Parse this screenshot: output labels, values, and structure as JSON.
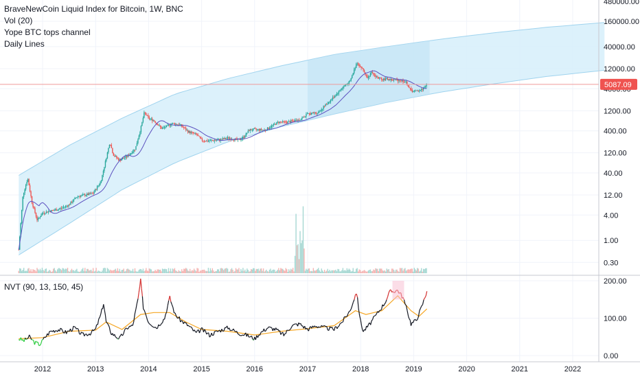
{
  "legend": {
    "title": "BraveNewCoin Liquid Index for Bitcoin, 1W, BNC",
    "vol": "Vol (20)",
    "channel": "Yope BTC tops channel",
    "daily": "Daily Lines",
    "nvt": "NVT (90, 13, 150, 45)"
  },
  "price_badge": {
    "label": "5087.09",
    "color": "#ef5350"
  },
  "colors": {
    "channel_fill": "#d6eefa",
    "channel_edge": "#9fd3ee",
    "highlight": "#bfe3f5",
    "up_candle": "#26a69a",
    "down_candle": "#ef5350",
    "ma": "#5b4fbf",
    "nvt_line": "#131722",
    "nvt_sma": "#f5a623",
    "nvt_high": "#d32f2f",
    "nvt_low": "#2ecc40",
    "price_line": "#ef9a9a"
  },
  "chart_data": [
    {
      "type": "candlestick",
      "scale": "log",
      "price_ticks": [
        "480000.00",
        "160000.00",
        "40000.00",
        "12000.00",
        "4000.00",
        "1200.00",
        "400.00",
        "120.00",
        "40.00",
        "12.00",
        "4.00",
        "1.00",
        "0.30"
      ],
      "price_tick_values": [
        480000,
        160000,
        40000,
        12000,
        4000,
        1200,
        400,
        120,
        40,
        12,
        4,
        1,
        0.3
      ],
      "x_ticks": [
        "2012",
        "2013",
        "2014",
        "2015",
        "2016",
        "2017",
        "2018",
        "2019",
        "2020",
        "2021",
        "2022"
      ],
      "x_tick_values": [
        2012,
        2013,
        2014,
        2015,
        2016,
        2017,
        2018,
        2019,
        2020,
        2021,
        2022
      ],
      "last_price": 5087.09,
      "price_path": [
        [
          2011.55,
          0.6
        ],
        [
          2011.63,
          12
        ],
        [
          2011.72,
          30
        ],
        [
          2011.8,
          8
        ],
        [
          2011.9,
          3
        ],
        [
          2012.0,
          4.5
        ],
        [
          2012.15,
          5
        ],
        [
          2012.3,
          5.5
        ],
        [
          2012.5,
          7
        ],
        [
          2012.65,
          11
        ],
        [
          2012.8,
          12
        ],
        [
          2012.95,
          13
        ],
        [
          2013.1,
          25
        ],
        [
          2013.2,
          90
        ],
        [
          2013.27,
          220
        ],
        [
          2013.33,
          110
        ],
        [
          2013.45,
          80
        ],
        [
          2013.6,
          100
        ],
        [
          2013.75,
          150
        ],
        [
          2013.85,
          450
        ],
        [
          2013.92,
          1100
        ],
        [
          2014.0,
          800
        ],
        [
          2014.1,
          700
        ],
        [
          2014.25,
          450
        ],
        [
          2014.45,
          600
        ],
        [
          2014.6,
          550
        ],
        [
          2014.75,
          380
        ],
        [
          2014.9,
          330
        ],
        [
          2015.0,
          240
        ],
        [
          2015.1,
          230
        ],
        [
          2015.3,
          240
        ],
        [
          2015.5,
          270
        ],
        [
          2015.7,
          240
        ],
        [
          2015.8,
          290
        ],
        [
          2015.9,
          420
        ],
        [
          2016.0,
          430
        ],
        [
          2016.2,
          420
        ],
        [
          2016.45,
          650
        ],
        [
          2016.6,
          640
        ],
        [
          2016.85,
          740
        ],
        [
          2017.0,
          1000
        ],
        [
          2017.2,
          1100
        ],
        [
          2017.35,
          1700
        ],
        [
          2017.5,
          2600
        ],
        [
          2017.65,
          4200
        ],
        [
          2017.8,
          6000
        ],
        [
          2017.93,
          17000
        ],
        [
          2018.05,
          11000
        ],
        [
          2018.12,
          7500
        ],
        [
          2018.2,
          9500
        ],
        [
          2018.35,
          7000
        ],
        [
          2018.5,
          6700
        ],
        [
          2018.6,
          6500
        ],
        [
          2018.75,
          6400
        ],
        [
          2018.85,
          5800
        ],
        [
          2018.95,
          3600
        ],
        [
          2019.05,
          3500
        ],
        [
          2019.15,
          3800
        ],
        [
          2019.25,
          5087
        ]
      ],
      "channel": {
        "upper": [
          [
            2011.55,
            35
          ],
          [
            2012.5,
            180
          ],
          [
            2013.5,
            800
          ],
          [
            2014.5,
            3000
          ],
          [
            2015.5,
            7000
          ],
          [
            2016.5,
            14000
          ],
          [
            2017.5,
            26000
          ],
          [
            2018.5,
            40000
          ],
          [
            2019.5,
            60000
          ],
          [
            2020.5,
            85000
          ],
          [
            2021.5,
            115000
          ],
          [
            2022.6,
            150000
          ]
        ],
        "lower": [
          [
            2011.55,
            0.45
          ],
          [
            2012.5,
            2.5
          ],
          [
            2013.5,
            16
          ],
          [
            2014.5,
            70
          ],
          [
            2015.5,
            220
          ],
          [
            2016.5,
            500
          ],
          [
            2017.5,
            1000
          ],
          [
            2018.5,
            1900
          ],
          [
            2019.5,
            3300
          ],
          [
            2020.5,
            5200
          ],
          [
            2021.5,
            7800
          ],
          [
            2022.6,
            11000
          ]
        ]
      },
      "highlight_range": [
        2017.0,
        2019.3
      ]
    },
    {
      "type": "line",
      "title": "NVT (90, 13, 150, 45)",
      "y_ticks": [
        "200.00",
        "100.00",
        "0.00"
      ],
      "y_tick_values": [
        200,
        100,
        0
      ],
      "ylim": [
        -5,
        210
      ],
      "high_threshold": 150,
      "low_threshold": 45,
      "series": [
        {
          "name": "NVT",
          "x": [
            2011.55,
            2011.65,
            2011.75,
            2011.85,
            2011.95,
            2012.05,
            2012.15,
            2012.3,
            2012.45,
            2012.6,
            2012.75,
            2012.9,
            2013.0,
            2013.1,
            2013.15,
            2013.2,
            2013.3,
            2013.45,
            2013.6,
            2013.7,
            2013.8,
            2013.85,
            2013.9,
            2014.0,
            2014.15,
            2014.3,
            2014.4,
            2014.5,
            2014.6,
            2014.75,
            2014.9,
            2015.0,
            2015.15,
            2015.3,
            2015.5,
            2015.7,
            2015.85,
            2016.0,
            2016.1,
            2016.25,
            2016.4,
            2016.55,
            2016.7,
            2016.85,
            2017.0,
            2017.15,
            2017.3,
            2017.5,
            2017.65,
            2017.8,
            2017.92,
            2018.0,
            2018.05,
            2018.15,
            2018.3,
            2018.45,
            2018.55,
            2018.7,
            2018.8,
            2018.9,
            2018.95,
            2019.05,
            2019.15,
            2019.25
          ],
          "values": [
            45,
            40,
            50,
            35,
            30,
            50,
            65,
            70,
            62,
            75,
            55,
            60,
            70,
            110,
            140,
            90,
            60,
            45,
            75,
            80,
            150,
            200,
            130,
            90,
            75,
            100,
            155,
            110,
            95,
            80,
            60,
            70,
            55,
            65,
            75,
            60,
            55,
            45,
            60,
            75,
            70,
            55,
            80,
            85,
            70,
            80,
            75,
            70,
            90,
            120,
            170,
            90,
            65,
            80,
            110,
            140,
            170,
            175,
            155,
            110,
            85,
            95,
            130,
            172
          ]
        },
        {
          "name": "SMA",
          "x": [
            2011.55,
            2012.0,
            2012.5,
            2013.0,
            2013.2,
            2013.5,
            2013.85,
            2014.1,
            2014.4,
            2014.7,
            2015.0,
            2015.5,
            2016.0,
            2016.5,
            2017.0,
            2017.5,
            2017.9,
            2018.1,
            2018.4,
            2018.7,
            2018.95,
            2019.1,
            2019.25
          ],
          "values": [
            45,
            48,
            65,
            68,
            90,
            70,
            110,
            115,
            115,
            90,
            70,
            65,
            55,
            65,
            72,
            80,
            120,
            110,
            120,
            160,
            120,
            105,
            125
          ]
        }
      ]
    }
  ]
}
